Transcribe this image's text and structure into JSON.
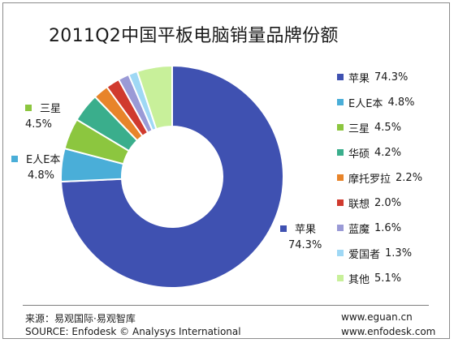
{
  "chart_data": {
    "type": "pie",
    "donut": true,
    "title": "2011Q2中国平板电脑销量品牌份额",
    "unit": "%",
    "legend_position": "right",
    "slices": [
      {
        "label": "苹果",
        "value": 74.3,
        "value_label": "74.3%",
        "color": "#3f51b1"
      },
      {
        "label": "E人E本",
        "value": 4.8,
        "value_label": "4.8%",
        "color": "#4aaed8"
      },
      {
        "label": "三星",
        "value": 4.5,
        "value_label": "4.5%",
        "color": "#8cc63f"
      },
      {
        "label": "华硕",
        "value": 4.2,
        "value_label": "4.2%",
        "color": "#3aae8c"
      },
      {
        "label": "摩托罗拉",
        "value": 2.2,
        "value_label": "2.2%",
        "color": "#e8842a"
      },
      {
        "label": "联想",
        "value": 2.0,
        "value_label": "2.0%",
        "color": "#d03a2e"
      },
      {
        "label": "蓝魔",
        "value": 1.6,
        "value_label": "1.6%",
        "color": "#9a9ad6"
      },
      {
        "label": "爱国者",
        "value": 1.3,
        "value_label": "1.3%",
        "color": "#9fd8f5"
      },
      {
        "label": "其他",
        "value": 5.1,
        "value_label": "5.1%",
        "color": "#c8f09a"
      }
    ]
  },
  "footer": {
    "source_cn": "来源：易观国际·易观智库",
    "source_en": "SOURCE: Enfodesk © Analysys International",
    "site1": "www.eguan.cn",
    "site2": "www.enfodesk.com"
  }
}
